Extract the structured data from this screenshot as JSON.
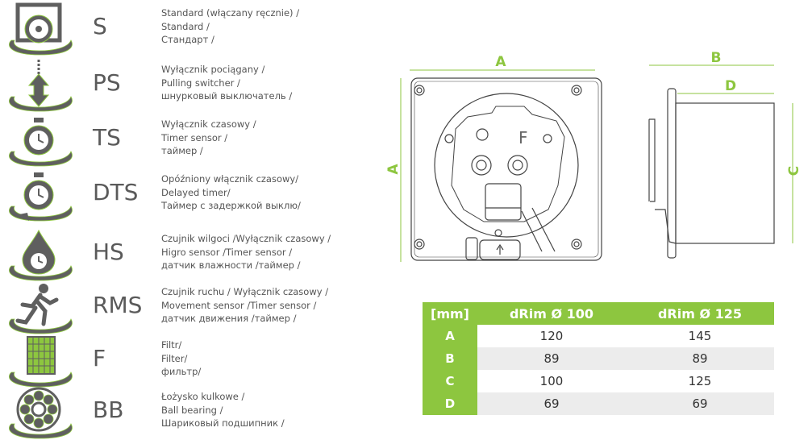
{
  "accent_color": "#8dc63f",
  "icon_color": "#5f5f5f",
  "features": [
    {
      "code": "S",
      "icon": "fan-icon",
      "lines": [
        "Standard (włączany ręcznie) /",
        "Standard /",
        "Стандарт /"
      ]
    },
    {
      "code": "PS",
      "icon": "pull-cord-icon",
      "lines": [
        "Wyłącznik pociągany /",
        "Pulling switcher /",
        "шнурковый выключатель /"
      ]
    },
    {
      "code": "TS",
      "icon": "stopwatch-icon",
      "lines": [
        "Wyłącznik czasowy /",
        "Timer sensor /",
        "таймер /"
      ]
    },
    {
      "code": "DTS",
      "icon": "delayed-timer-icon",
      "lines": [
        "Opóźniony włącznik czasowy/",
        "Delayed timer/",
        "Таймер с задержкой выклю/"
      ]
    },
    {
      "code": "HS",
      "icon": "humidity-drop-icon",
      "lines": [
        "Czujnik wilgoci /Wyłącznik czasowy /",
        "Higro sensor /Timer sensor /",
        "датчик влажности /таймер /"
      ]
    },
    {
      "code": "RMS",
      "icon": "running-man-icon",
      "lines": [
        "Czujnik ruchu / Wyłącznik czasowy /",
        "Movement sensor /Timer sensor /",
        "датчик движения /таймер /"
      ]
    },
    {
      "code": "F",
      "icon": "filter-grid-icon",
      "lines": [
        "Filtr/",
        "Filter/",
        "фильтр/"
      ]
    },
    {
      "code": "BB",
      "icon": "ball-bearing-icon",
      "lines": [
        "Łożysko kulkowe /",
        "Ball bearing /",
        "Шариковый подшипник /"
      ]
    }
  ],
  "drawing": {
    "front_labels": {
      "width": "A",
      "height": "A",
      "timer_symbol": "F"
    },
    "side_labels": {
      "overall_depth": "B",
      "body_depth": "D",
      "body_diameter": "C"
    }
  },
  "table": {
    "headers": [
      "[mm]",
      "dRim Ø 100",
      "dRim Ø 125"
    ],
    "rows": [
      {
        "dim": "A",
        "values": [
          "120",
          "145"
        ]
      },
      {
        "dim": "B",
        "values": [
          "89",
          "89"
        ]
      },
      {
        "dim": "C",
        "values": [
          "100",
          "125"
        ]
      },
      {
        "dim": "D",
        "values": [
          "69",
          "69"
        ]
      }
    ]
  }
}
